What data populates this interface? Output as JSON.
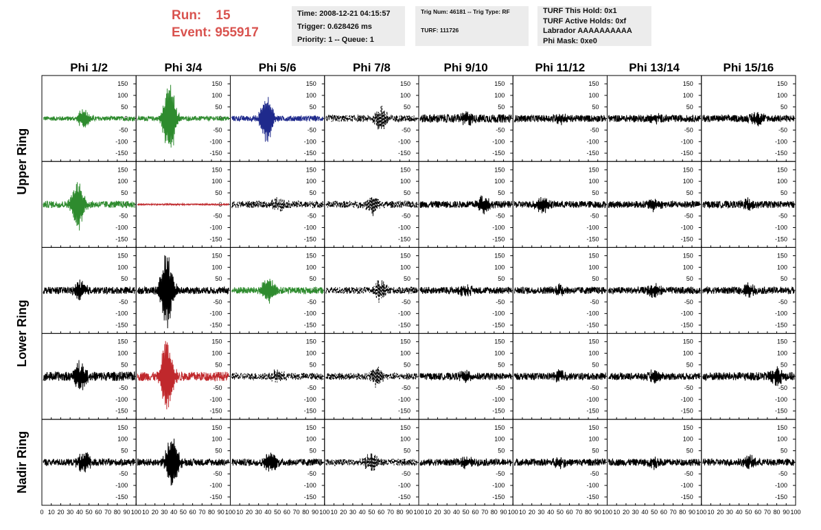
{
  "header": {
    "run_label": "Run:",
    "run_value": "15",
    "event_label": "Event:",
    "event_value": "955917"
  },
  "info_boxes": {
    "time": [
      "Time: 2008-12-21 04:15:57",
      "Trigger: 0.628426 ms",
      "Priority: 1 -- Queue: 1"
    ],
    "trig": [
      "Trig Num: 46181 -- Trig Type: RF",
      "TURF: 111726"
    ],
    "turf": [
      "TURF This Hold: 0x1",
      "TURF Active Holds: 0xf",
      "Labrador AAAAAAAAAA",
      "Phi Mask: 0xe0"
    ]
  },
  "colors": {
    "green": "#2e8b2e",
    "blue": "#1f2a8c",
    "red": "#c0282c",
    "black": "#000000",
    "header_red": "#d9534f"
  },
  "chart_data": {
    "type": "line",
    "columns": [
      "Phi 1/2",
      "Phi 3/4",
      "Phi 5/6",
      "Phi 7/8",
      "Phi 9/10",
      "Phi 11/12",
      "Phi 13/14",
      "Phi 15/16"
    ],
    "ring_labels": [
      "Upper Ring",
      "Lower Ring",
      "Nadir Ring"
    ],
    "xlim": [
      0,
      100
    ],
    "ylim": [
      -180,
      180
    ],
    "y_ticks": [
      -150,
      -100,
      -50,
      0,
      50,
      100,
      150
    ],
    "x_ticks": [
      0,
      10,
      20,
      30,
      40,
      50,
      60,
      70,
      80,
      90,
      100
    ],
    "x_tick_labels": [
      "0",
      "10",
      "20",
      "30",
      "40",
      "50",
      "60",
      "70",
      "80",
      "90",
      "100"
    ],
    "panels": [
      [
        {
          "color": "green",
          "style": "solid",
          "peak_x": 45,
          "amp": 45,
          "noise": 10
        },
        {
          "color": "green",
          "style": "solid",
          "peak_x": 35,
          "amp": 175,
          "noise": 10
        },
        {
          "color": "blue",
          "style": "solid",
          "peak_x": 38,
          "amp": 110,
          "noise": 12
        },
        {
          "color": "black",
          "style": "dashed",
          "peak_x": 60,
          "amp": 50,
          "noise": 15
        },
        {
          "color": "black",
          "style": "solid",
          "peak_x": 50,
          "amp": 30,
          "noise": 18
        },
        {
          "color": "black",
          "style": "solid",
          "peak_x": 50,
          "amp": 20,
          "noise": 15
        },
        {
          "color": "black",
          "style": "solid",
          "peak_x": 50,
          "amp": 20,
          "noise": 15
        },
        {
          "color": "black",
          "style": "solid",
          "peak_x": 60,
          "amp": 30,
          "noise": 15
        }
      ],
      [
        {
          "color": "green",
          "style": "solid",
          "peak_x": 38,
          "amp": 110,
          "noise": 15
        },
        {
          "color": "red",
          "style": "solid",
          "peak_x": 50,
          "amp": 3,
          "noise": 3
        },
        {
          "color": "black",
          "style": "dashed",
          "peak_x": 50,
          "amp": 30,
          "noise": 15
        },
        {
          "color": "black",
          "style": "dashed",
          "peak_x": 50,
          "amp": 40,
          "noise": 15
        },
        {
          "color": "black",
          "style": "solid",
          "peak_x": 70,
          "amp": 40,
          "noise": 15
        },
        {
          "color": "black",
          "style": "solid",
          "peak_x": 30,
          "amp": 40,
          "noise": 15
        },
        {
          "color": "black",
          "style": "solid",
          "peak_x": 50,
          "amp": 25,
          "noise": 15
        },
        {
          "color": "black",
          "style": "solid",
          "peak_x": 50,
          "amp": 25,
          "noise": 15
        }
      ],
      [
        {
          "color": "black",
          "style": "solid",
          "peak_x": 40,
          "amp": 45,
          "noise": 15
        },
        {
          "color": "black",
          "style": "solid",
          "peak_x": 32,
          "amp": 175,
          "noise": 15
        },
        {
          "color": "green",
          "style": "solid",
          "peak_x": 40,
          "amp": 60,
          "noise": 15
        },
        {
          "color": "black",
          "style": "dashed",
          "peak_x": 60,
          "amp": 50,
          "noise": 15
        },
        {
          "color": "black",
          "style": "solid",
          "peak_x": 50,
          "amp": 25,
          "noise": 15
        },
        {
          "color": "black",
          "style": "solid",
          "peak_x": 50,
          "amp": 25,
          "noise": 15
        },
        {
          "color": "black",
          "style": "solid",
          "peak_x": 50,
          "amp": 25,
          "noise": 15
        },
        {
          "color": "black",
          "style": "solid",
          "peak_x": 50,
          "amp": 25,
          "noise": 15
        }
      ],
      [
        {
          "color": "black",
          "style": "solid",
          "peak_x": 40,
          "amp": 60,
          "noise": 20
        },
        {
          "color": "red",
          "style": "solid",
          "peak_x": 32,
          "amp": 180,
          "noise": 20
        },
        {
          "color": "black",
          "style": "dashed",
          "peak_x": 50,
          "amp": 30,
          "noise": 15
        },
        {
          "color": "black",
          "style": "dashed",
          "peak_x": 55,
          "amp": 40,
          "noise": 15
        },
        {
          "color": "black",
          "style": "solid",
          "peak_x": 50,
          "amp": 25,
          "noise": 15
        },
        {
          "color": "black",
          "style": "solid",
          "peak_x": 50,
          "amp": 25,
          "noise": 15
        },
        {
          "color": "black",
          "style": "solid",
          "peak_x": 50,
          "amp": 25,
          "noise": 15
        },
        {
          "color": "black",
          "style": "solid",
          "peak_x": 80,
          "amp": 35,
          "noise": 18
        }
      ],
      [
        {
          "color": "black",
          "style": "solid",
          "peak_x": 45,
          "amp": 50,
          "noise": 15
        },
        {
          "color": "black",
          "style": "solid",
          "peak_x": 38,
          "amp": 125,
          "noise": 15
        },
        {
          "color": "black",
          "style": "solid",
          "peak_x": 42,
          "amp": 50,
          "noise": 15
        },
        {
          "color": "black",
          "style": "dashed",
          "peak_x": 50,
          "amp": 40,
          "noise": 15
        },
        {
          "color": "black",
          "style": "solid",
          "peak_x": 50,
          "amp": 25,
          "noise": 15
        },
        {
          "color": "black",
          "style": "solid",
          "peak_x": 50,
          "amp": 25,
          "noise": 15
        },
        {
          "color": "black",
          "style": "solid",
          "peak_x": 50,
          "amp": 25,
          "noise": 15
        },
        {
          "color": "black",
          "style": "solid",
          "peak_x": 50,
          "amp": 25,
          "noise": 15
        }
      ]
    ]
  }
}
